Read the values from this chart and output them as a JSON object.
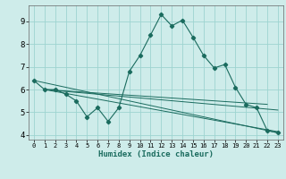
{
  "title": "",
  "xlabel": "Humidex (Indice chaleur)",
  "background_color": "#ceecea",
  "grid_color": "#9dd4d0",
  "line_color": "#1a6b5e",
  "xlim": [
    -0.5,
    23.5
  ],
  "ylim": [
    3.8,
    9.7
  ],
  "yticks": [
    4,
    5,
    6,
    7,
    8,
    9
  ],
  "xticks": [
    0,
    1,
    2,
    3,
    4,
    5,
    6,
    7,
    8,
    9,
    10,
    11,
    12,
    13,
    14,
    15,
    16,
    17,
    18,
    19,
    20,
    21,
    22,
    23
  ],
  "main_x": [
    0,
    1,
    2,
    3,
    4,
    5,
    6,
    7,
    8,
    9,
    10,
    11,
    12,
    13,
    14,
    15,
    16,
    17,
    18,
    19,
    20,
    21,
    22,
    23
  ],
  "main_y": [
    6.4,
    6.0,
    6.0,
    5.8,
    5.5,
    4.8,
    5.2,
    4.6,
    5.2,
    6.8,
    7.5,
    8.4,
    9.3,
    8.8,
    9.05,
    8.3,
    7.5,
    6.95,
    7.1,
    6.1,
    5.35,
    5.2,
    4.2,
    4.1
  ],
  "line1_x": [
    0,
    23
  ],
  "line1_y": [
    6.4,
    4.1
  ],
  "line2_x": [
    1,
    23
  ],
  "line2_y": [
    6.0,
    4.15
  ],
  "line3_x": [
    1,
    23
  ],
  "line3_y": [
    6.0,
    5.1
  ],
  "line4_x": [
    1,
    22
  ],
  "line4_y": [
    6.0,
    5.35
  ]
}
